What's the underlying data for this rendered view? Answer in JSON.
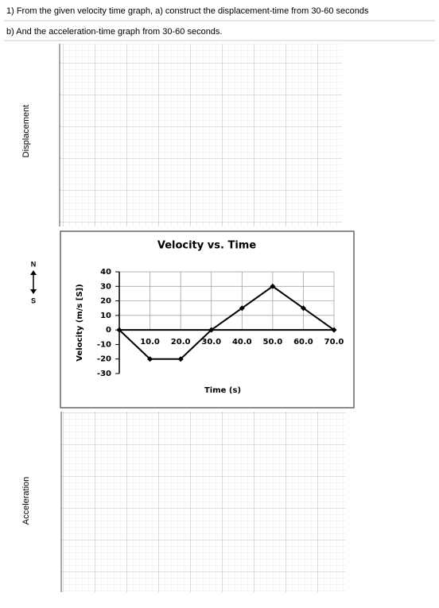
{
  "questions": [
    "1) From the given velocity time graph, a) construct the displacement-time from 30-60 seconds",
    "b) And the acceleration-time graph from 30-60 seconds."
  ],
  "grids": [
    {
      "label": "Displacement"
    },
    {
      "label": "Acceleration"
    }
  ],
  "compass": {
    "north": "N",
    "south": "S"
  },
  "chart_data": {
    "type": "line",
    "title": "Velocity vs. Time",
    "x_label": "Time (s)",
    "y_label": "Velocity (m/s [S])",
    "x": [
      0,
      10,
      20,
      30,
      40,
      50,
      60,
      70
    ],
    "values": [
      0,
      -20,
      -20,
      0,
      15,
      30,
      15,
      0
    ],
    "color": "#000000",
    "xlim": [
      0,
      70
    ],
    "xticks": [
      {
        "value": 10,
        "label": "10.0"
      },
      {
        "value": 20,
        "label": "20.0"
      },
      {
        "value": 30,
        "label": "30.0"
      },
      {
        "value": 40,
        "label": "40.0"
      },
      {
        "value": 50,
        "label": "50.0"
      },
      {
        "value": 60,
        "label": "60.0"
      },
      {
        "value": 70,
        "label": "70.0"
      }
    ],
    "ylim": [
      -30,
      40
    ],
    "yticks": [
      40,
      30,
      20,
      10,
      0,
      -10,
      -20,
      -30
    ],
    "grid": true
  }
}
